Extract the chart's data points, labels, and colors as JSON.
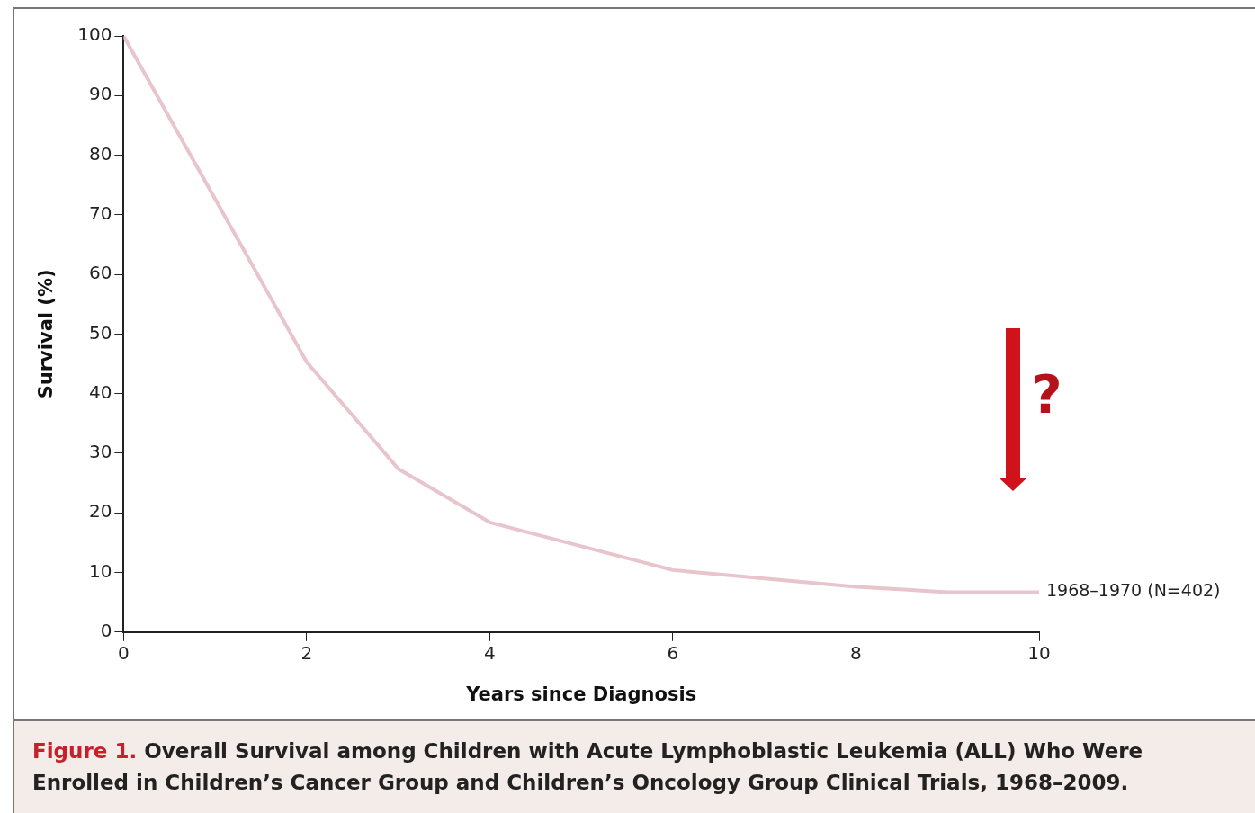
{
  "chart_data": {
    "type": "line",
    "xlabel": "Years since Diagnosis",
    "ylabel": "Survival (%)",
    "x": [
      0,
      2,
      3,
      4,
      6,
      8,
      9,
      10
    ],
    "series": [
      {
        "name": "1968–1970 (N=402)",
        "color": "#e8c4cc",
        "values": [
          100,
          45.3,
          27.4,
          18.4,
          10.4,
          7.6,
          6.7,
          6.7
        ]
      }
    ],
    "xlim": [
      0,
      10
    ],
    "xticks": [
      0,
      2,
      4,
      6,
      8,
      10
    ],
    "ylim": [
      0,
      100
    ],
    "yticks": [
      0,
      10,
      20,
      30,
      40,
      50,
      60,
      70,
      80,
      90,
      100
    ],
    "grid": false,
    "legend": false,
    "marker": "none",
    "line_style": "solid",
    "annotations": [
      "Figure 1.",
      "Overall Survival among Children with Acute Lymphoblastic Leukemia (ALL) Who Were Enrolled in Children’s Cancer Group and Children’s Oncology Group Clinical Trials, 1968–2009.",
      "?"
    ]
  }
}
